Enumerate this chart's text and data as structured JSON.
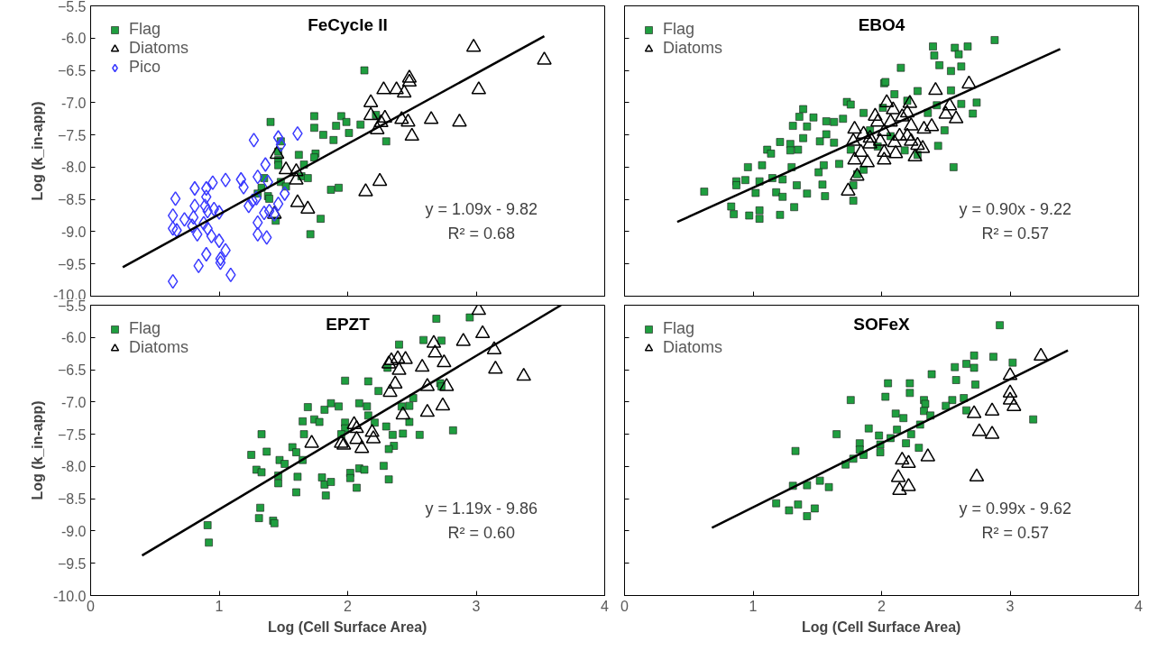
{
  "chart_data": [
    {
      "type": "scatter",
      "title": "FeCycle II",
      "ylabel": "Log (k_in-app)",
      "xlim": [
        0,
        4
      ],
      "xticks": [
        0,
        1,
        2,
        3,
        4
      ],
      "ylim": [
        -10,
        -5.5
      ],
      "yticks": [
        {
          "value": -10,
          "label": "-10.0"
        },
        -9.5,
        {
          "value": -9,
          "label": "-9.0"
        },
        -8.5,
        {
          "value": -8,
          "label": "-8.0"
        },
        -7.5,
        {
          "value": -7,
          "label": "-7.0"
        },
        -6.5,
        {
          "value": -6,
          "label": "-6.0"
        },
        -5.5
      ],
      "tick_labels": "y",
      "legend": "top left",
      "annotations": [
        "y = 1.09x - 9.82",
        "R² = 0.68"
      ],
      "series": [
        {
          "name": "Flag",
          "color": "#1f9e3f",
          "marker": "square",
          "x": [
            2.13,
            1.4,
            1.74,
            1.95,
            1.74,
            1.99,
            1.91,
            2.1,
            1.81,
            2.01,
            1.89,
            2.22,
            2.3,
            1.48,
            1.46,
            1.62,
            1.75,
            1.74,
            1.46,
            1.46,
            1.66,
            1.64,
            1.35,
            1.48,
            1.33,
            1.52,
            1.3,
            1.38,
            1.87,
            1.93,
            1.44,
            1.79,
            1.71,
            1.39,
            1.69
          ],
          "values": [
            -6.5,
            -7.3,
            -7.21,
            -7.21,
            -7.39,
            -7.3,
            -7.36,
            -7.34,
            -7.5,
            -7.47,
            -7.58,
            -7.19,
            -7.6,
            -7.6,
            -7.76,
            -7.81,
            -7.79,
            -7.85,
            -7.89,
            -7.97,
            -7.96,
            -8.14,
            -8.17,
            -8.23,
            -8.32,
            -8.3,
            -8.41,
            -8.45,
            -8.35,
            -8.32,
            -8.83,
            -8.8,
            -9.04,
            -8.49,
            -8.17
          ]
        },
        {
          "name": "Diatoms",
          "color": "#000000",
          "marker": "triangle",
          "x": [
            2.98,
            3.53,
            2.48,
            2.48,
            2.28,
            2.38,
            2.44,
            3.02,
            2.18,
            2.18,
            2.29,
            2.26,
            2.42,
            2.47,
            2.65,
            2.87,
            2.5,
            2.23,
            1.45,
            1.52,
            1.6,
            1.6,
            2.25,
            2.14,
            1.61,
            1.69,
            1.43
          ],
          "values": [
            -6.14,
            -6.34,
            -6.62,
            -6.68,
            -6.8,
            -6.8,
            -6.85,
            -6.8,
            -7.0,
            -7.2,
            -7.24,
            -7.31,
            -7.26,
            -7.3,
            -7.26,
            -7.3,
            -7.52,
            -7.42,
            -7.8,
            -8.04,
            -8.07,
            -8.2,
            -8.22,
            -8.38,
            -8.55,
            -8.65,
            -8.73
          ]
        },
        {
          "name": "Pico",
          "color": "#3a3aff",
          "marker": "diamond",
          "x": [
            0.64,
            0.66,
            0.64,
            0.64,
            0.67,
            0.73,
            0.81,
            0.81,
            0.8,
            0.79,
            0.83,
            0.84,
            0.9,
            0.9,
            0.89,
            0.91,
            0.88,
            0.91,
            0.94,
            0.9,
            0.95,
            0.96,
            1.0,
            1.0,
            1.01,
            1.01,
            1.05,
            1.09,
            1.05,
            1.17,
            1.19,
            1.27,
            1.23,
            1.26,
            1.29,
            1.3,
            1.3,
            1.3,
            1.37,
            1.36,
            1.35,
            1.39,
            1.43,
            1.46,
            1.48,
            1.46,
            1.51,
            1.61,
            1.38
          ],
          "values": [
            -9.77,
            -8.49,
            -8.75,
            -8.95,
            -8.98,
            -8.81,
            -8.33,
            -8.6,
            -8.78,
            -8.91,
            -9.04,
            -9.53,
            -8.33,
            -8.46,
            -8.6,
            -8.68,
            -8.87,
            -8.95,
            -9.07,
            -9.35,
            -8.24,
            -8.65,
            -8.7,
            -9.14,
            -9.42,
            -9.48,
            -9.29,
            -9.67,
            -8.2,
            -8.19,
            -8.31,
            -7.58,
            -8.6,
            -8.52,
            -8.48,
            -8.15,
            -8.86,
            -9.04,
            -9.09,
            -7.96,
            -8.71,
            -8.68,
            -8.73,
            -7.54,
            -7.65,
            -8.57,
            -8.41,
            -7.48,
            -8.23
          ]
        },
        {
          "type": "line",
          "color": "#000000",
          "x": [
            0.25,
            3.53
          ],
          "values": [
            -9.55,
            -5.97
          ]
        }
      ]
    },
    {
      "type": "scatter",
      "title": "EBO4",
      "xlim": [
        0,
        4
      ],
      "xticks": [
        0,
        1,
        2,
        3,
        4
      ],
      "ylim": [
        -10,
        -5.5
      ],
      "yticks": [
        -10,
        -9.5,
        -9,
        -8.5,
        -8,
        -7.5,
        -7,
        -6.5,
        -6,
        -5.5
      ],
      "tick_labels": false,
      "legend": "top left",
      "annotations": [
        "y = 0.90x - 9.22",
        "R² = 0.57"
      ],
      "series": [
        {
          "name": "Flag",
          "color": "#1f9e3f",
          "marker": "square",
          "x": [
            2.88,
            2.4,
            2.57,
            2.67,
            2.41,
            2.6,
            2.15,
            2.45,
            2.62,
            2.54,
            2.02,
            2.03,
            2.1,
            2.28,
            2.54,
            2.74,
            2.62,
            2.71,
            2.43,
            1.73,
            1.76,
            1.39,
            1.47,
            1.36,
            1.57,
            1.7,
            1.86,
            2.01,
            1.31,
            1.42,
            1.57,
            1.39,
            1.52,
            1.63,
            1.21,
            1.29,
            1.35,
            1.11,
            1.14,
            1.29,
            0.96,
            1.07,
            1.3,
            1.55,
            1.67,
            1.51,
            0.87,
            0.94,
            1.05,
            0.87,
            1.15,
            1.23,
            1.34,
            1.54,
            0.62,
            1.02,
            1.18,
            1.23,
            1.42,
            1.56,
            0.83,
            1.32,
            0.85,
            0.97,
            1.05,
            1.21,
            1.05,
            1.78,
            1.78,
            1.81,
            1.86,
            2.56,
            2.28,
            2.49,
            2.36,
            2.2,
            1.91,
            2.07,
            1.97,
            1.76,
            2.18,
            2.44,
            1.63
          ],
          "values": [
            -6.03,
            -6.13,
            -6.15,
            -6.13,
            -6.27,
            -6.25,
            -6.46,
            -6.42,
            -6.44,
            -6.51,
            -6.7,
            -6.68,
            -6.87,
            -6.82,
            -6.81,
            -7.0,
            -7.02,
            -7.17,
            -7.04,
            -6.99,
            -7.03,
            -7.1,
            -7.23,
            -7.22,
            -7.29,
            -7.25,
            -7.16,
            -7.08,
            -7.36,
            -7.37,
            -7.49,
            -7.55,
            -7.6,
            -7.62,
            -7.61,
            -7.64,
            -7.73,
            -7.73,
            -7.79,
            -7.74,
            -8.0,
            -7.97,
            -8.0,
            -7.97,
            -7.95,
            -8.08,
            -8.22,
            -8.2,
            -8.22,
            -8.28,
            -8.17,
            -8.19,
            -8.28,
            -8.27,
            -8.38,
            -8.4,
            -8.39,
            -8.46,
            -8.41,
            -8.45,
            -8.61,
            -8.62,
            -8.73,
            -8.75,
            -8.8,
            -8.74,
            -8.67,
            -8.52,
            -8.28,
            -8.11,
            -8.04,
            -8.0,
            -7.81,
            -7.43,
            -7.16,
            -6.97,
            -7.43,
            -7.52,
            -7.68,
            -7.73,
            -7.74,
            -7.67,
            -7.3
          ]
        },
        {
          "name": "Diatoms",
          "color": "#000000",
          "marker": "triangle",
          "x": [
            2.68,
            2.42,
            2.04,
            2.22,
            2.09,
            2.53,
            2.5,
            2.58,
            1.95,
            2.2,
            2.16,
            1.97,
            2.07,
            2.23,
            2.39,
            2.33,
            1.79,
            1.86,
            1.91,
            2.02,
            2.14,
            2.2,
            1.78,
            1.91,
            1.99,
            2.1,
            2.23,
            2.28,
            2.32,
            1.84,
            2.02,
            2.11,
            2.26,
            1.79,
            1.89,
            2.02,
            1.81,
            1.74
          ],
          "values": [
            -6.71,
            -6.81,
            -7.0,
            -7.01,
            -7.11,
            -7.05,
            -7.18,
            -7.25,
            -7.21,
            -7.16,
            -7.22,
            -7.3,
            -7.3,
            -7.36,
            -7.37,
            -7.41,
            -7.41,
            -7.49,
            -7.55,
            -7.45,
            -7.52,
            -7.52,
            -7.6,
            -7.64,
            -7.6,
            -7.62,
            -7.6,
            -7.66,
            -7.71,
            -7.77,
            -7.77,
            -7.79,
            -7.84,
            -7.89,
            -7.93,
            -7.89,
            -8.14,
            -8.37
          ]
        },
        {
          "type": "line",
          "color": "#000000",
          "x": [
            0.41,
            3.39
          ],
          "values": [
            -8.85,
            -6.17
          ]
        }
      ]
    },
    {
      "type": "scatter",
      "title": "EPZT",
      "xlabel": "Log (Cell Surface Area)",
      "ylabel": "Log (k_in-app)",
      "xlim": [
        0,
        4
      ],
      "xticks": [
        0,
        1,
        2,
        3,
        4
      ],
      "ylim": [
        -10,
        -5.5
      ],
      "yticks": [
        {
          "value": -10,
          "label": "-10.0"
        },
        -9.5,
        {
          "value": -9,
          "label": "-9.0"
        },
        -8.5,
        {
          "value": -8,
          "label": "-8.0"
        },
        -7.5,
        {
          "value": -7,
          "label": "-7.0"
        },
        -6.5,
        {
          "value": -6,
          "label": "-6.0"
        },
        -5.5
      ],
      "legend": "top left",
      "annotations": [
        "y = 1.19x - 9.86",
        "R² = 0.60"
      ],
      "series": [
        {
          "name": "Flag",
          "color": "#1f9e3f",
          "marker": "square",
          "x": [
            2.69,
            2.95,
            2.59,
            2.73,
            2.4,
            2.31,
            1.98,
            2.16,
            2.24,
            2.72,
            2.73,
            2.51,
            2.48,
            2.42,
            1.69,
            1.82,
            1.87,
            1.93,
            2.09,
            2.15,
            2.16,
            1.65,
            1.74,
            1.78,
            1.98,
            1.98,
            2.3,
            2.21,
            2.48,
            2.82,
            2.43,
            2.35,
            2.56,
            1.33,
            1.66,
            1.95,
            1.57,
            1.6,
            1.37,
            1.25,
            1.47,
            1.65,
            1.51,
            2.36,
            2.32,
            1.29,
            1.33,
            1.46,
            1.46,
            1.61,
            1.8,
            1.82,
            1.87,
            2.02,
            2.09,
            2.13,
            2.28,
            2.02,
            2.07,
            2.32,
            1.6,
            1.83,
            1.32,
            1.31,
            1.42,
            1.43,
            0.91,
            0.92
          ],
          "values": [
            -5.71,
            -5.69,
            -6.04,
            -6.05,
            -6.11,
            -6.47,
            -6.67,
            -6.68,
            -6.83,
            -6.71,
            -6.76,
            -6.94,
            -7.06,
            -7.07,
            -7.08,
            -7.12,
            -7.02,
            -7.07,
            -7.02,
            -7.07,
            -7.21,
            -7.3,
            -7.27,
            -7.31,
            -7.32,
            -7.41,
            -7.38,
            -7.32,
            -7.31,
            -7.44,
            -7.49,
            -7.51,
            -7.51,
            -7.5,
            -7.5,
            -7.5,
            -7.7,
            -7.78,
            -7.77,
            -7.82,
            -7.9,
            -7.9,
            -7.96,
            -7.68,
            -7.73,
            -8.05,
            -8.09,
            -8.14,
            -8.26,
            -8.16,
            -8.17,
            -8.28,
            -8.24,
            -8.1,
            -8.03,
            -8.05,
            -7.99,
            -8.18,
            -8.33,
            -8.2,
            -8.4,
            -8.45,
            -8.64,
            -8.8,
            -8.84,
            -8.88,
            -8.91,
            -9.18
          ]
        },
        {
          "name": "Diatoms",
          "color": "#000000",
          "marker": "triangle",
          "x": [
            3.02,
            3.05,
            2.67,
            2.9,
            2.68,
            3.14,
            2.34,
            2.39,
            2.45,
            2.32,
            2.75,
            2.58,
            2.4,
            3.15,
            3.37,
            2.37,
            2.62,
            2.77,
            2.33,
            2.74,
            2.62,
            2.43,
            2.05,
            2.07,
            2.19,
            2.2,
            1.72,
            1.95,
            1.97,
            2.07,
            2.11
          ],
          "values": [
            -5.58,
            -5.94,
            -6.09,
            -6.06,
            -6.24,
            -6.19,
            -6.36,
            -6.33,
            -6.34,
            -6.41,
            -6.39,
            -6.46,
            -6.51,
            -6.49,
            -6.6,
            -6.72,
            -6.76,
            -6.76,
            -6.85,
            -7.06,
            -7.16,
            -7.2,
            -7.35,
            -7.41,
            -7.47,
            -7.57,
            -7.64,
            -7.64,
            -7.67,
            -7.58,
            -7.72
          ]
        },
        {
          "type": "line",
          "color": "#000000",
          "x": [
            0.4,
            3.66
          ],
          "values": [
            -9.38,
            -5.5
          ]
        }
      ]
    },
    {
      "type": "scatter",
      "title": "SOFeX",
      "xlabel": "Log (Cell Surface Area)",
      "xlim": [
        0,
        4
      ],
      "xticks": [
        0,
        1,
        2,
        3,
        4
      ],
      "ylim": [
        -10,
        -5.5
      ],
      "yticks": [
        -10,
        -9.5,
        -9,
        -8.5,
        -8,
        -7.5,
        -7,
        -6.5,
        -6,
        -5.5
      ],
      "tick_labels": "x",
      "legend": "top left",
      "annotations": [
        "y = 0.99x - 9.62",
        "R² = 0.57"
      ],
      "series": [
        {
          "name": "Flag",
          "color": "#1f9e3f",
          "marker": "square",
          "x": [
            2.92,
            2.72,
            2.87,
            3.02,
            2.57,
            2.66,
            2.72,
            2.39,
            2.58,
            2.73,
            2.05,
            2.22,
            2.03,
            2.22,
            1.76,
            2.33,
            2.55,
            2.64,
            2.34,
            2.5,
            2.66,
            2.33,
            2.11,
            2.17,
            2.38,
            3.18,
            2.3,
            1.9,
            2.12,
            2.23,
            1.98,
            1.65,
            2.07,
            2.19,
            2.29,
            1.83,
            1.99,
            1.83,
            1.99,
            1.86,
            1.78,
            1.72,
            1.33,
            1.52,
            1.31,
            1.42,
            1.59,
            1.18,
            1.28,
            1.35,
            1.48,
            1.42
          ],
          "values": [
            -5.81,
            -6.28,
            -6.3,
            -6.39,
            -6.46,
            -6.41,
            -6.47,
            -6.57,
            -6.66,
            -6.73,
            -6.71,
            -6.71,
            -6.92,
            -6.86,
            -6.97,
            -6.97,
            -6.97,
            -6.94,
            -7.03,
            -7.06,
            -7.13,
            -7.14,
            -7.18,
            -7.25,
            -7.21,
            -7.27,
            -7.35,
            -7.41,
            -7.43,
            -7.5,
            -7.52,
            -7.5,
            -7.56,
            -7.64,
            -7.71,
            -7.64,
            -7.66,
            -7.74,
            -7.78,
            -7.82,
            -7.88,
            -7.97,
            -7.76,
            -8.22,
            -8.3,
            -8.29,
            -8.32,
            -8.57,
            -8.68,
            -8.59,
            -8.65,
            -8.77
          ]
        },
        {
          "name": "Diatoms",
          "color": "#000000",
          "marker": "triangle",
          "x": [
            3.24,
            3.0,
            3.0,
            3.0,
            3.03,
            2.72,
            2.86,
            2.76,
            2.86,
            2.36,
            2.16,
            2.21,
            2.13,
            2.21,
            2.14,
            2.74
          ],
          "values": [
            -6.29,
            -6.59,
            -6.86,
            -6.97,
            -7.07,
            -7.18,
            -7.14,
            -7.46,
            -7.5,
            -7.85,
            -7.9,
            -7.95,
            -8.17,
            -8.31,
            -8.37,
            -8.16
          ]
        },
        {
          "type": "line",
          "color": "#000000",
          "x": [
            0.68,
            3.45
          ],
          "values": [
            -8.95,
            -6.2
          ]
        }
      ]
    }
  ]
}
